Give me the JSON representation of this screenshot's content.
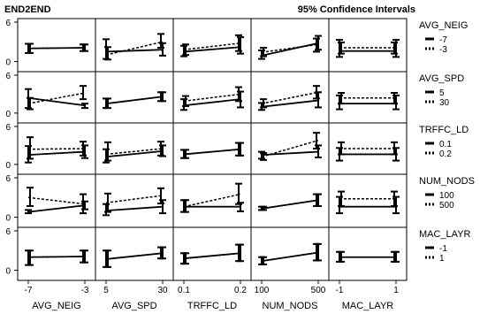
{
  "header": {
    "left": "END2END",
    "right": "95% Confidence Intervals"
  },
  "chart_data": {
    "type": "line",
    "title": "",
    "y_ticks": [
      "0",
      "6"
    ],
    "ylim": [
      -1,
      6
    ],
    "grid": false,
    "columns": [
      {
        "name": "AVG_NEIG",
        "levels": [
          "-7",
          "-3"
        ]
      },
      {
        "name": "AVG_SPD",
        "levels": [
          "5",
          "30"
        ]
      },
      {
        "name": "TRFFC_LD",
        "levels": [
          "0.1",
          "0.2"
        ]
      },
      {
        "name": "NUM_NODS",
        "levels": [
          "100",
          "500"
        ]
      },
      {
        "name": "MAC_LAYR",
        "levels": [
          "-1",
          "1"
        ]
      }
    ],
    "rows": [
      {
        "name": "AVG_NEIG",
        "legend": [
          "-7",
          "-3"
        ]
      },
      {
        "name": "AVG_SPD",
        "legend": [
          "5",
          "30"
        ]
      },
      {
        "name": "TRFFC_LD",
        "legend": [
          "0.1",
          "0.2"
        ]
      },
      {
        "name": "NUM_NODS",
        "legend": [
          "100",
          "500"
        ]
      },
      {
        "name": "MAC_LAYR",
        "legend": [
          "-1",
          "1"
        ]
      }
    ],
    "cells": [
      [
        {
          "solid": [
            [
              2.0,
              1.3,
              2.7
            ],
            [
              2.1,
              1.6,
              2.6
            ]
          ],
          "dashed": [
            [
              2.0,
              1.3,
              2.7
            ],
            [
              2.1,
              1.6,
              2.6
            ]
          ]
        },
        {
          "solid": [
            [
              1.5,
              0.4,
              3.4
            ],
            [
              1.8,
              0.9,
              2.8
            ]
          ],
          "dashed": [
            [
              1.0,
              0.3,
              2.2
            ],
            [
              3.0,
              2.1,
              4.2
            ]
          ]
        },
        {
          "solid": [
            [
              1.5,
              0.8,
              2.4
            ],
            [
              2.2,
              1.2,
              3.7
            ]
          ],
          "dashed": [
            [
              1.8,
              1.0,
              2.6
            ],
            [
              2.8,
              1.6,
              4.0
            ]
          ]
        },
        {
          "solid": [
            [
              0.9,
              0.4,
              1.7
            ],
            [
              2.8,
              1.8,
              3.9
            ]
          ],
          "dashed": [
            [
              1.4,
              0.8,
              2.1
            ],
            [
              2.6,
              1.5,
              3.5
            ]
          ]
        },
        {
          "solid": [
            [
              1.6,
              0.7,
              3.3
            ],
            [
              1.6,
              0.7,
              3.3
            ]
          ],
          "dashed": [
            [
              2.1,
              1.2,
              2.9
            ],
            [
              2.1,
              1.2,
              2.9
            ]
          ]
        }
      ],
      [
        {
          "solid": [
            [
              2.4,
              0.8,
              3.8
            ],
            [
              1.2,
              0.8,
              1.5
            ]
          ],
          "dashed": [
            [
              1.5,
              0.6,
              2.4
            ],
            [
              3.2,
              2.2,
              4.3
            ]
          ]
        },
        {
          "solid": [
            [
              1.5,
              0.8,
              2.3
            ],
            [
              2.6,
              1.9,
              3.3
            ]
          ],
          "dashed": [
            [
              1.5,
              0.8,
              2.3
            ],
            [
              2.6,
              1.9,
              3.3
            ]
          ]
        },
        {
          "solid": [
            [
              1.2,
              0.5,
              2.2
            ],
            [
              2.2,
              0.9,
              3.4
            ]
          ],
          "dashed": [
            [
              1.9,
              1.1,
              2.7
            ],
            [
              3.0,
              1.9,
              4.1
            ]
          ]
        },
        {
          "solid": [
            [
              1.0,
              0.5,
              1.6
            ],
            [
              2.0,
              0.9,
              3.3
            ]
          ],
          "dashed": [
            [
              1.5,
              0.9,
              2.2
            ],
            [
              3.3,
              2.3,
              4.3
            ]
          ]
        },
        {
          "solid": [
            [
              1.5,
              0.6,
              2.8
            ],
            [
              1.5,
              0.6,
              2.8
            ]
          ],
          "dashed": [
            [
              2.4,
              1.5,
              3.2
            ],
            [
              2.4,
              1.5,
              3.2
            ]
          ]
        }
      ],
      [
        {
          "solid": [
            [
              1.5,
              0.3,
              2.9
            ],
            [
              2.0,
              1.0,
              3.0
            ]
          ],
          "dashed": [
            [
              2.4,
              0.9,
              4.3
            ],
            [
              2.5,
              1.4,
              3.6
            ]
          ]
        },
        {
          "solid": [
            [
              1.2,
              0.3,
              2.4
            ],
            [
              2.1,
              1.3,
              3.0
            ]
          ],
          "dashed": [
            [
              1.6,
              0.6,
              3.5
            ],
            [
              2.5,
              1.4,
              3.6
            ]
          ]
        },
        {
          "solid": [
            [
              1.6,
              1.0,
              2.3
            ],
            [
              2.4,
              1.4,
              3.4
            ]
          ],
          "dashed": [
            [
              1.6,
              1.0,
              2.3
            ],
            [
              2.4,
              1.4,
              3.4
            ]
          ]
        },
        {
          "solid": [
            [
              1.5,
              0.9,
              2.0
            ],
            [
              2.0,
              1.1,
              3.0
            ]
          ],
          "dashed": [
            [
              1.2,
              0.7,
              1.8
            ],
            [
              3.8,
              2.5,
              5.0
            ]
          ]
        },
        {
          "solid": [
            [
              1.6,
              0.6,
              2.6
            ],
            [
              1.6,
              0.6,
              2.6
            ]
          ],
          "dashed": [
            [
              2.5,
              1.6,
              3.5
            ],
            [
              2.5,
              1.6,
              3.5
            ]
          ]
        }
      ],
      [
        {
          "solid": [
            [
              0.8,
              0.6,
              1.1
            ],
            [
              1.8,
              1.2,
              2.4
            ]
          ],
          "dashed": [
            [
              3.0,
              1.7,
              4.5
            ],
            [
              2.0,
              0.6,
              3.5
            ]
          ]
        },
        {
          "solid": [
            [
              1.0,
              0.3,
              2.0
            ],
            [
              1.6,
              0.6,
              2.6
            ]
          ],
          "dashed": [
            [
              2.2,
              0.8,
              3.6
            ],
            [
              3.3,
              2.1,
              4.4
            ]
          ]
        },
        {
          "solid": [
            [
              1.6,
              0.8,
              2.6
            ],
            [
              1.6,
              0.9,
              2.2
            ]
          ],
          "dashed": [
            [
              1.6,
              0.8,
              2.6
            ],
            [
              3.5,
              2.0,
              5.1
            ]
          ]
        },
        {
          "solid": [
            [
              1.3,
              1.1,
              1.6
            ],
            [
              2.6,
              1.7,
              3.5
            ]
          ],
          "dashed": [
            [
              1.3,
              1.1,
              1.6
            ],
            [
              2.6,
              1.7,
              3.5
            ]
          ]
        },
        {
          "solid": [
            [
              1.6,
              0.6,
              3.1
            ],
            [
              1.6,
              0.6,
              3.1
            ]
          ],
          "dashed": [
            [
              2.8,
              1.7,
              3.9
            ],
            [
              2.8,
              1.7,
              3.9
            ]
          ]
        }
      ],
      [
        {
          "solid": [
            [
              2.0,
              0.8,
              3.0
            ],
            [
              2.1,
              1.2,
              3.0
            ]
          ],
          "dashed": [
            [
              2.0,
              0.8,
              3.0
            ],
            [
              2.1,
              1.2,
              3.0
            ]
          ]
        },
        {
          "solid": [
            [
              1.7,
              0.5,
              3.0
            ],
            [
              2.6,
              1.8,
              3.5
            ]
          ],
          "dashed": [
            [
              1.7,
              0.5,
              3.0
            ],
            [
              2.6,
              1.8,
              3.5
            ]
          ]
        },
        {
          "solid": [
            [
              1.8,
              1.0,
              2.6
            ],
            [
              2.6,
              1.4,
              3.9
            ]
          ],
          "dashed": [
            [
              1.8,
              1.0,
              2.6
            ],
            [
              2.6,
              1.4,
              3.9
            ]
          ]
        },
        {
          "solid": [
            [
              1.4,
              0.9,
              2.0
            ],
            [
              2.7,
              1.5,
              4.0
            ]
          ],
          "dashed": [
            [
              1.4,
              0.9,
              2.0
            ],
            [
              2.7,
              1.5,
              4.0
            ]
          ]
        },
        {
          "solid": [
            [
              2.0,
              1.3,
              2.8
            ],
            [
              2.0,
              1.3,
              2.8
            ]
          ],
          "dashed": [
            [
              2.0,
              1.3,
              2.8
            ],
            [
              2.0,
              1.3,
              2.8
            ]
          ]
        }
      ]
    ]
  }
}
